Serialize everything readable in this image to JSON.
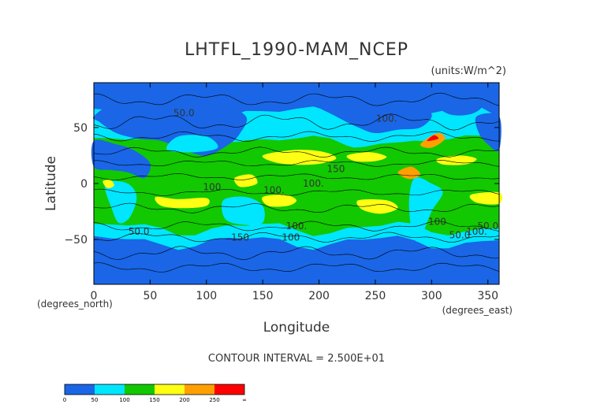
{
  "chart_data": {
    "type": "heatmap",
    "title": "LHTFL_1990-MAM_NCEP",
    "units": "(units:W/m^2)",
    "xlabel": "Longitude",
    "ylabel": "Latitude",
    "xlim": [
      0,
      360
    ],
    "ylim": [
      -90,
      90
    ],
    "x_ticks": [
      0,
      50,
      100,
      150,
      200,
      250,
      300,
      350
    ],
    "y_ticks": [
      -50,
      0,
      50
    ],
    "x_tick_labels": [
      "0",
      "50",
      "100",
      "150",
      "200",
      "250",
      "300",
      "350"
    ],
    "y_tick_labels": [
      "−50",
      "0",
      "50"
    ],
    "x_unit_note": "(degrees_east)",
    "y_unit_note": "(degrees_north)",
    "contour_interval_text": "CONTOUR INTERVAL = 2.500E+01",
    "contour_labels": [
      "50.0",
      "100.",
      "150",
      "100.",
      "100.",
      "100",
      "50.0",
      "150",
      "100.",
      "100",
      "100.",
      "50.0",
      "100",
      "50.0"
    ],
    "colorbar": {
      "levels": [
        "0",
        "50",
        "100",
        "150",
        "200",
        "250",
        "∞"
      ],
      "colors": [
        "#1a66e6",
        "#00e6ff",
        "#12c800",
        "#ffff14",
        "#ffa000",
        "#ff0000"
      ]
    },
    "bands": [
      {
        "lat_from": 90,
        "lat_to": 60,
        "level": "0-50"
      },
      {
        "lat_from": 60,
        "lat_to": 40,
        "level": "50-100"
      },
      {
        "lat_from": 40,
        "lat_to": 10,
        "level": "100-150"
      },
      {
        "lat_from": 30,
        "lat_to": 10,
        "level": "150-200",
        "note": "patches"
      },
      {
        "lat_from": 10,
        "lat_to": -5,
        "level": "100-150"
      },
      {
        "lat_from": -5,
        "lat_to": -35,
        "level": "100-150"
      },
      {
        "lat_from": -10,
        "lat_to": -30,
        "level": "150-200",
        "note": "patches"
      },
      {
        "lat_from": -35,
        "lat_to": -50,
        "level": "50-100"
      },
      {
        "lat_from": -50,
        "lat_to": -90,
        "level": "0-50"
      }
    ]
  }
}
